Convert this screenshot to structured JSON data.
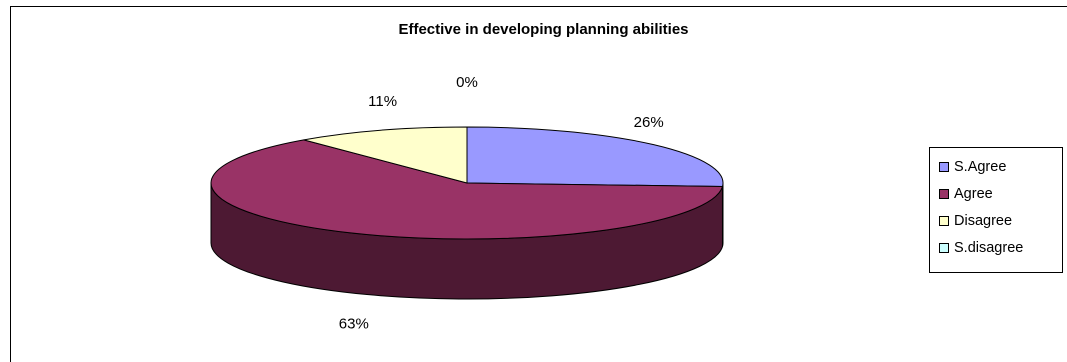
{
  "chart_data": {
    "type": "pie",
    "title": "Effective in developing planning abilities",
    "categories": [
      "S.Agree",
      "Agree",
      "Disagree",
      "S.disagree"
    ],
    "values": [
      26,
      63,
      11,
      0
    ],
    "labels": [
      "26%",
      "63%",
      "11%",
      "0%"
    ],
    "colors": [
      "#9999ff",
      "#993366",
      "#ffffcc",
      "#ccffff"
    ],
    "side_colors": [
      "#4d4d80",
      "#4d1933",
      "#808066",
      "#668080"
    ],
    "legend_position": "right",
    "three_d": true
  }
}
